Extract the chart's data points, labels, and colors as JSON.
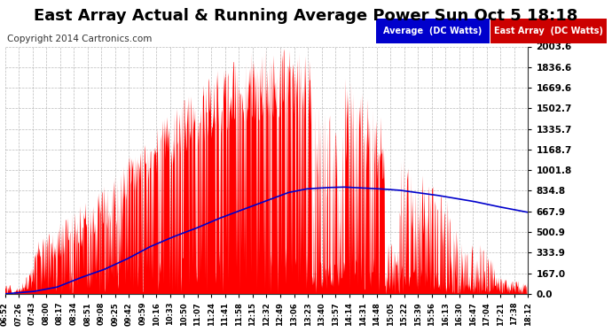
{
  "title": "East Array Actual & Running Average Power Sun Oct 5 18:18",
  "copyright": "Copyright 2014 Cartronics.com",
  "yticks": [
    0.0,
    167.0,
    333.9,
    500.9,
    667.9,
    834.8,
    1001.8,
    1168.7,
    1335.7,
    1502.7,
    1669.6,
    1836.6,
    2003.6
  ],
  "ymax": 2003.6,
  "ymin": 0.0,
  "fill_color": "#ff0000",
  "line_color": "#0000cc",
  "background_color": "#ffffff",
  "plot_bg_color": "#ffffff",
  "grid_color": "#aaaaaa",
  "legend_avg_bg": "#0000cc",
  "legend_east_bg": "#cc0000",
  "legend_avg_text": "Average  (DC Watts)",
  "legend_east_text": "East Array  (DC Watts)",
  "title_fontsize": 13,
  "copyright_fontsize": 7.5,
  "tick_fontsize": 7,
  "xtick_labels": [
    "06:52",
    "07:26",
    "07:43",
    "08:00",
    "08:17",
    "08:34",
    "08:51",
    "09:08",
    "09:25",
    "09:42",
    "09:59",
    "10:16",
    "10:33",
    "10:50",
    "11:07",
    "11:24",
    "11:41",
    "11:58",
    "12:15",
    "12:32",
    "12:49",
    "13:06",
    "13:23",
    "13:40",
    "13:57",
    "14:14",
    "14:31",
    "14:48",
    "15:05",
    "15:22",
    "15:39",
    "15:56",
    "16:13",
    "16:30",
    "16:47",
    "17:04",
    "17:21",
    "17:38",
    "18:12"
  ],
  "avg_points_x": [
    6.867,
    7.5,
    8.0,
    8.5,
    9.0,
    9.5,
    10.0,
    10.5,
    11.0,
    11.5,
    12.0,
    12.5,
    13.0,
    13.4,
    13.8,
    14.2,
    14.6,
    15.0,
    15.4,
    15.8,
    16.2,
    16.6,
    17.0,
    17.5,
    18.2
  ],
  "avg_points_y": [
    0,
    20,
    55,
    130,
    195,
    280,
    380,
    460,
    530,
    610,
    680,
    750,
    820,
    850,
    860,
    865,
    858,
    850,
    840,
    820,
    800,
    775,
    750,
    710,
    660
  ]
}
